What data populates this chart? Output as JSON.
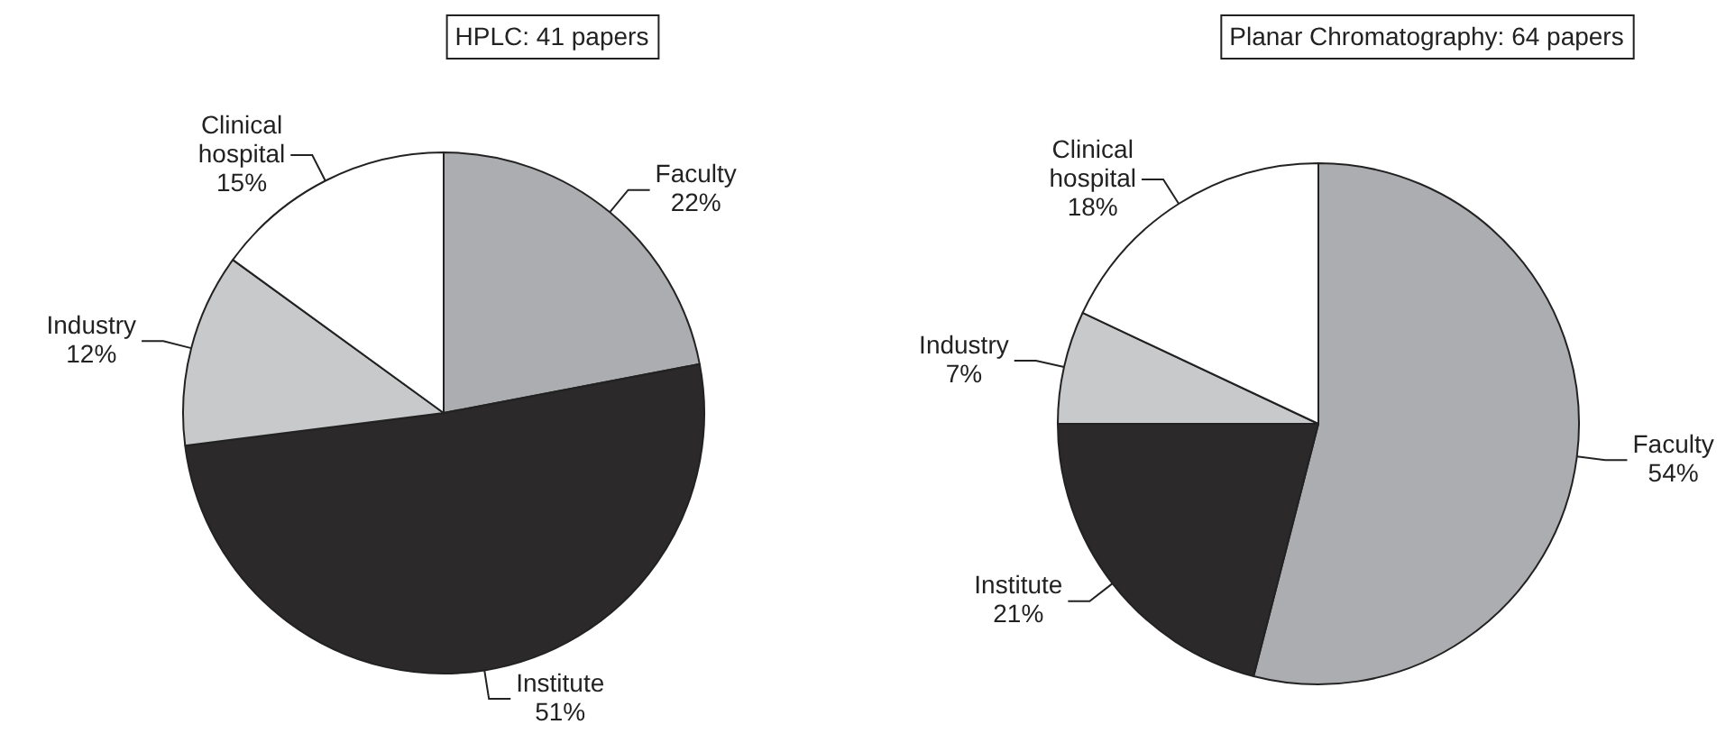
{
  "chart_data": [
    {
      "type": "pie",
      "title": "HPLC: 41 papers",
      "categories": [
        "Faculty",
        "Institute",
        "Industry",
        "Clinical hospital"
      ],
      "values": [
        22,
        51,
        12,
        15
      ],
      "colors": [
        "#acadb0",
        "#2b292a",
        "#c8c9cb",
        "#ffffff"
      ],
      "value_labels": [
        "22%",
        "51%",
        "12%",
        "15%"
      ],
      "legend": false
    },
    {
      "type": "pie",
      "title": "Planar Chromatography: 64 papers",
      "categories": [
        "Faculty",
        "Institute",
        "Industry",
        "Clinical hospital"
      ],
      "values": [
        54,
        21,
        7,
        18
      ],
      "colors": [
        "#acadb0",
        "#2b292a",
        "#c8c9cb",
        "#ffffff"
      ],
      "value_labels": [
        "54%",
        "21%",
        "7%",
        "18%"
      ],
      "legend": false
    }
  ]
}
